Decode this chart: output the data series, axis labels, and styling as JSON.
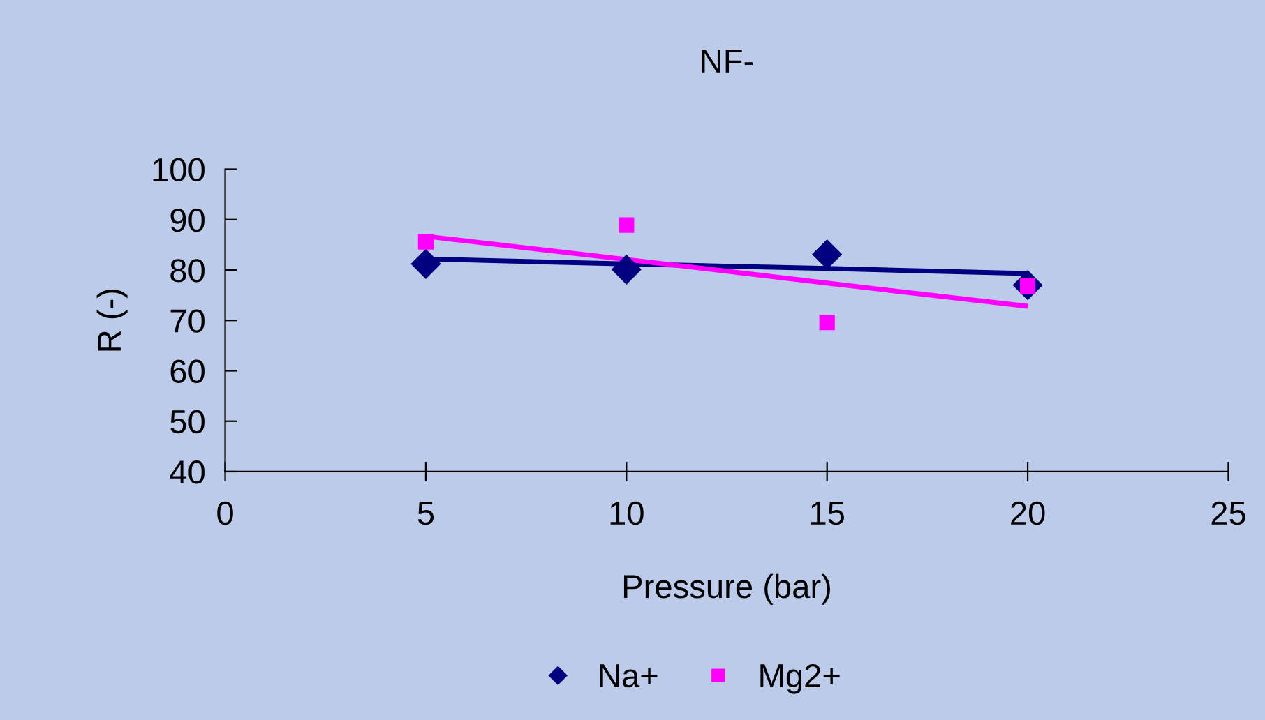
{
  "chart_data": {
    "type": "scatter",
    "title": "NF-",
    "xlabel": "Pressure (bar)",
    "ylabel": "R (-)",
    "x": [
      5,
      10,
      15,
      20
    ],
    "series": [
      {
        "name": "Na+",
        "color": "#000080",
        "marker": "diamond",
        "values": [
          81.2,
          80.1,
          83.1,
          77
        ]
      },
      {
        "name": "Mg2+",
        "color": "#ff00ff",
        "marker": "square",
        "values": [
          85.6,
          88.9,
          69.6,
          76.8
        ]
      },
      {
        "type": "line",
        "color": "#000080",
        "values": [
          82.2,
          81.2,
          80.3,
          79.3
        ],
        "marker": "none"
      },
      {
        "type": "line",
        "color": "#ff00ff",
        "values": [
          86.7,
          82.1,
          77.4,
          72.8
        ],
        "marker": "none"
      }
    ],
    "xlim": [
      0,
      25
    ],
    "xticks": [
      0,
      5,
      10,
      15,
      20,
      25
    ],
    "ylim": [
      40,
      100
    ],
    "yticks": [
      40,
      50,
      60,
      70,
      80,
      90,
      100
    ],
    "grid": false,
    "legend": "bottom"
  }
}
